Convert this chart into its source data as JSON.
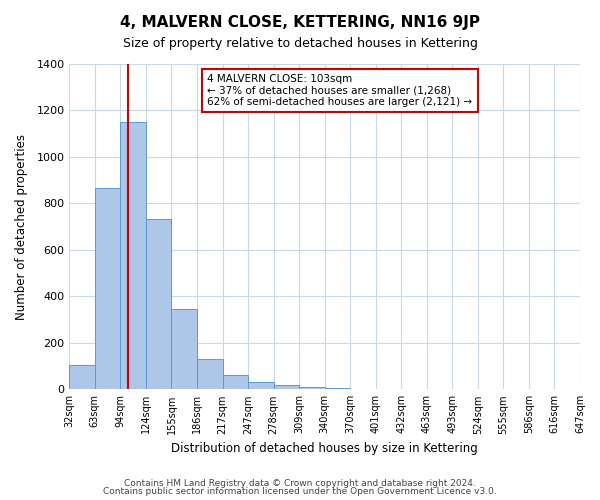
{
  "title": "4, MALVERN CLOSE, KETTERING, NN16 9JP",
  "subtitle": "Size of property relative to detached houses in Kettering",
  "xlabel": "Distribution of detached houses by size in Kettering",
  "ylabel": "Number of detached properties",
  "bar_values": [
    105,
    865,
    1150,
    735,
    345,
    130,
    60,
    30,
    20,
    10,
    5,
    0,
    0,
    0,
    0,
    0,
    0,
    0,
    0,
    0
  ],
  "bin_labels": [
    "32sqm",
    "63sqm",
    "94sqm",
    "124sqm",
    "155sqm",
    "186sqm",
    "217sqm",
    "247sqm",
    "278sqm",
    "309sqm",
    "340sqm",
    "370sqm",
    "401sqm",
    "432sqm",
    "463sqm",
    "493sqm",
    "524sqm",
    "555sqm",
    "586sqm",
    "616sqm",
    "647sqm"
  ],
  "bar_color": "#aec6e8",
  "bar_edge_color": "#5b9bd5",
  "vline_color": "#cc0000",
  "ylim": [
    0,
    1400
  ],
  "yticks": [
    0,
    200,
    400,
    600,
    800,
    1000,
    1200,
    1400
  ],
  "annotation_title": "4 MALVERN CLOSE: 103sqm",
  "annotation_line1": "← 37% of detached houses are smaller (1,268)",
  "annotation_line2": "62% of semi-detached houses are larger (2,121) →",
  "annotation_box_color": "#cc0000",
  "footer_line1": "Contains HM Land Registry data © Crown copyright and database right 2024.",
  "footer_line2": "Contains public sector information licensed under the Open Government Licence v3.0.",
  "background_color": "#ffffff",
  "grid_color": "#c8d8e8"
}
